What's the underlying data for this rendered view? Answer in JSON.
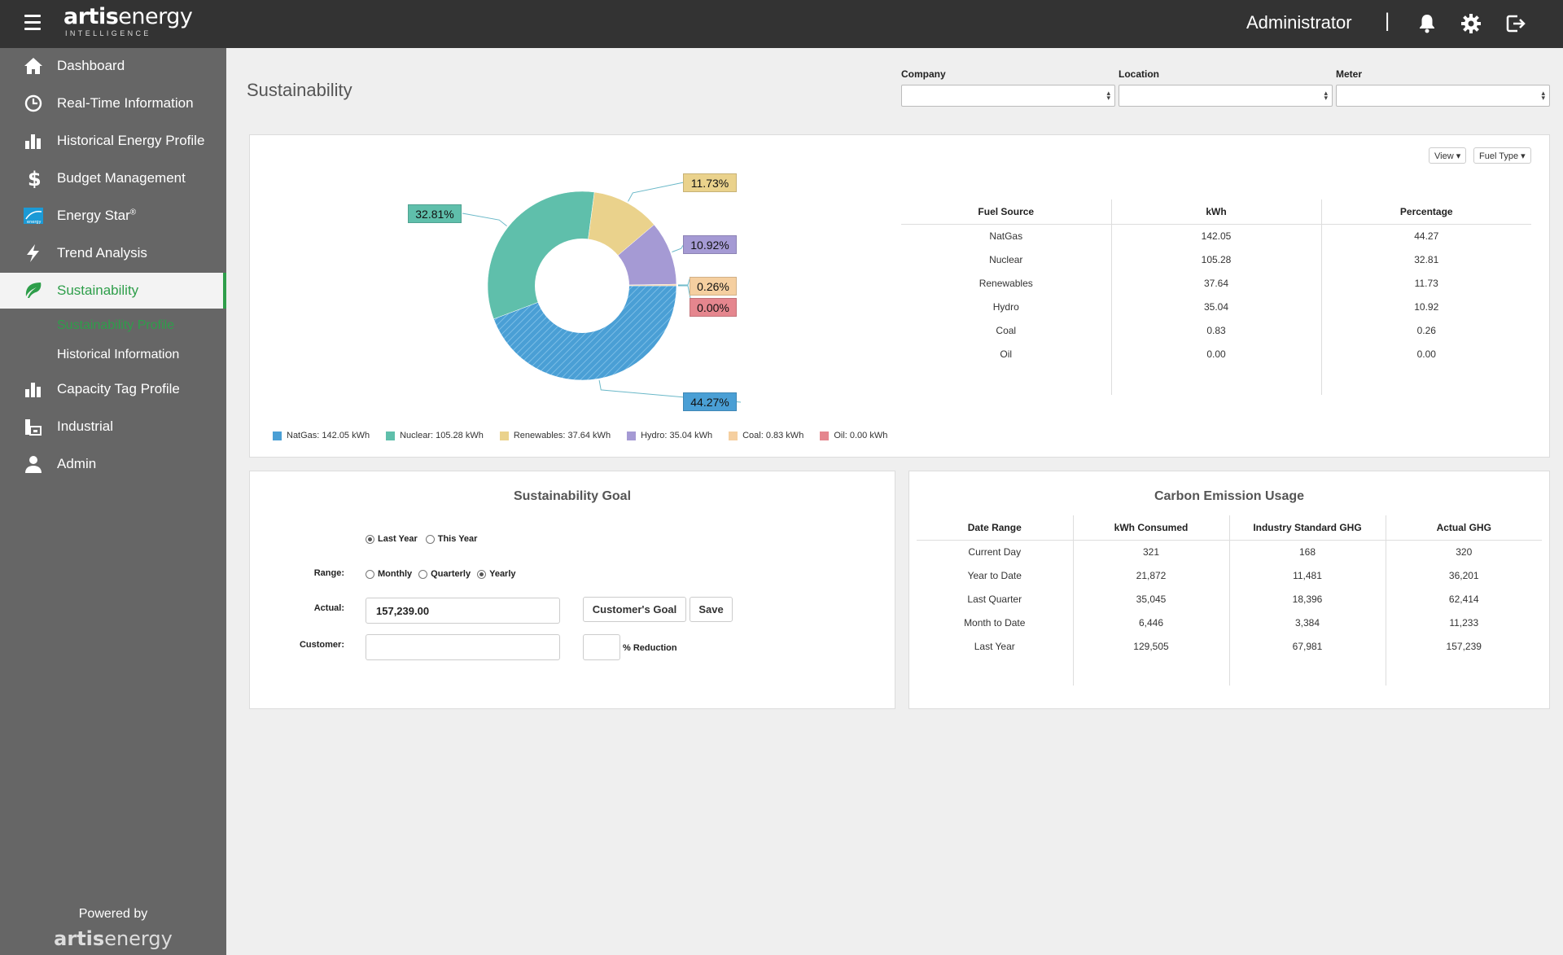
{
  "header": {
    "logo_bold": "artis",
    "logo_rest": "energy",
    "logo_sub": "INTELLIGENCE",
    "user": "Administrator",
    "separator": "|"
  },
  "sidebar": {
    "items": [
      {
        "label": "Dashboard",
        "icon": "home-icon"
      },
      {
        "label": "Real-Time Information",
        "icon": "clock-icon"
      },
      {
        "label": "Historical Energy Profile",
        "icon": "bar-chart-icon"
      },
      {
        "label": "Budget Management",
        "icon": "dollar-icon"
      },
      {
        "label": "Energy Star",
        "sup": "®",
        "icon": "energy-star-icon"
      },
      {
        "label": "Trend Analysis",
        "icon": "lightning-icon"
      },
      {
        "label": "Sustainability",
        "icon": "leaf-icon",
        "active": true
      },
      {
        "label": "Capacity Tag Profile",
        "icon": "bar-chart-icon"
      },
      {
        "label": "Industrial",
        "icon": "factory-icon"
      },
      {
        "label": "Admin",
        "icon": "user-icon"
      }
    ],
    "sub_items": [
      {
        "label": "Sustainability Profile",
        "active": true
      },
      {
        "label": "Historical Information",
        "active": false
      }
    ],
    "powered_by": "Powered by",
    "footer_logo_bold": "artis",
    "footer_logo_rest": "energy"
  },
  "page": {
    "title": "Sustainability",
    "filters": {
      "company_label": "Company",
      "location_label": "Location",
      "meter_label": "Meter",
      "company_value": "",
      "location_value": "",
      "meter_value": ""
    }
  },
  "fuel_panel": {
    "view_button": "View ▾",
    "fuel_type_button": "Fuel Type ▾",
    "table": {
      "headers": [
        "Fuel Source",
        "kWh",
        "Percentage"
      ],
      "rows": [
        [
          "NatGas",
          "142.05",
          "44.27"
        ],
        [
          "Nuclear",
          "105.28",
          "32.81"
        ],
        [
          "Renewables",
          "37.64",
          "11.73"
        ],
        [
          "Hydro",
          "35.04",
          "10.92"
        ],
        [
          "Coal",
          "0.83",
          "0.26"
        ],
        [
          "Oil",
          "0.00",
          "0.00"
        ]
      ]
    },
    "labels": {
      "natgas": "44.27%",
      "nuclear": "32.81%",
      "renewables": "11.73%",
      "hydro": "10.92%",
      "coal": "0.26%",
      "oil": "0.00%"
    },
    "legend": [
      {
        "text": "NatGas: 142.05 kWh",
        "color": "#4a9fd5"
      },
      {
        "text": "Nuclear: 105.28 kWh",
        "color": "#5fbfab"
      },
      {
        "text": "Renewables: 37.64 kWh",
        "color": "#ead28c"
      },
      {
        "text": "Hydro: 35.04 kWh",
        "color": "#a59ad4"
      },
      {
        "text": "Coal: 0.83 kWh",
        "color": "#f5cfa0"
      },
      {
        "text": "Oil: 0.00 kWh",
        "color": "#e5868e"
      }
    ]
  },
  "chart_data": {
    "type": "pie",
    "categories": [
      "NatGas",
      "Nuclear",
      "Renewables",
      "Hydro",
      "Coal",
      "Oil"
    ],
    "values": [
      44.27,
      32.81,
      11.73,
      10.92,
      0.26,
      0.0
    ],
    "kwh": [
      142.05,
      105.28,
      37.64,
      35.04,
      0.83,
      0.0
    ],
    "colors": [
      "#4a9fd5",
      "#5fbfab",
      "#ead28c",
      "#a59ad4",
      "#f5cfa0",
      "#e5868e"
    ],
    "title": "",
    "legend_position": "bottom"
  },
  "goal_panel": {
    "title": "Sustainability Goal",
    "period_options": [
      "Last Year",
      "This Year"
    ],
    "period_selected": 0,
    "range_label": "Range:",
    "range_options": [
      "Monthly",
      "Quarterly",
      "Yearly"
    ],
    "range_selected": 2,
    "actual_label": "Actual:",
    "actual_value": "157,239.00",
    "customer_label": "Customer:",
    "customer_value": "",
    "reduction_value": "",
    "customers_goal_button": "Customer's Goal",
    "save_button": "Save",
    "reduction_label": "% Reduction"
  },
  "carbon_panel": {
    "title": "Carbon Emission Usage",
    "headers": [
      "Date Range",
      "kWh Consumed",
      "Industry Standard GHG",
      "Actual GHG"
    ],
    "rows": [
      [
        "Current Day",
        "321",
        "168",
        "320"
      ],
      [
        "Year to Date",
        "21,872",
        "11,481",
        "36,201"
      ],
      [
        "Last Quarter",
        "35,045",
        "18,396",
        "62,414"
      ],
      [
        "Month to Date",
        "6,446",
        "3,384",
        "11,233"
      ],
      [
        "Last Year",
        "129,505",
        "67,981",
        "157,239"
      ]
    ]
  }
}
